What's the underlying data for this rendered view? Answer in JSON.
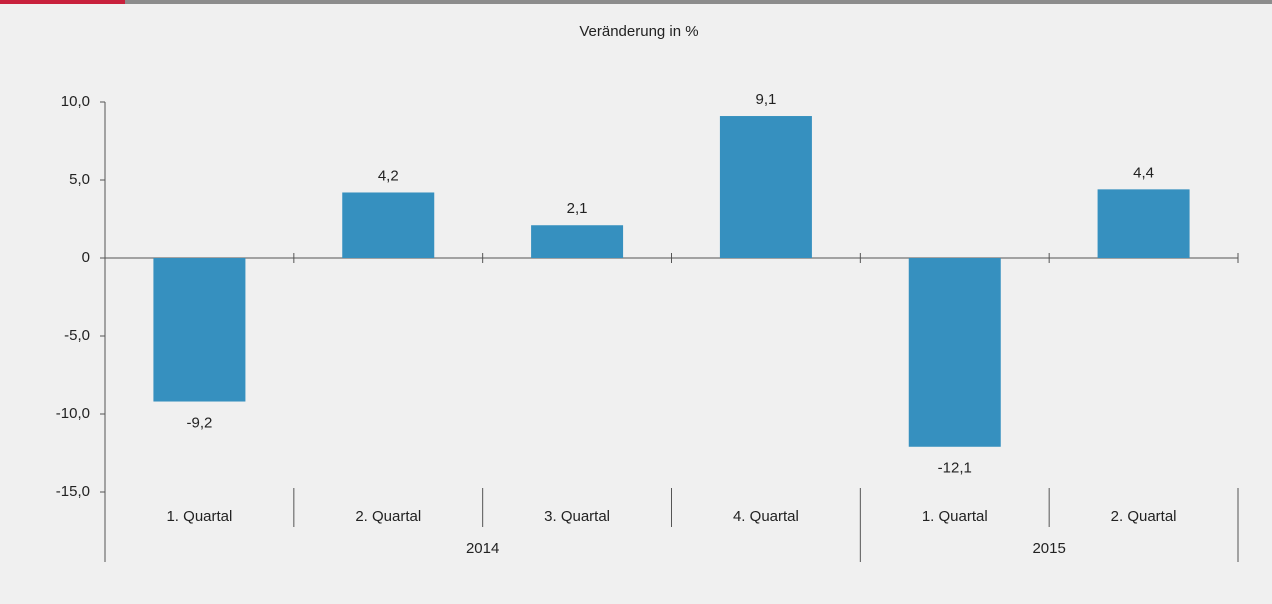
{
  "chart_data": {
    "type": "bar",
    "title": "Veränderung in %",
    "categories": [
      "1. Quartal",
      "2. Quartal",
      "3. Quartal",
      "4. Quartal",
      "1. Quartal",
      "2. Quartal"
    ],
    "groups": [
      {
        "label": "2014",
        "count": 4
      },
      {
        "label": "2015",
        "count": 2
      }
    ],
    "values": [
      -9.2,
      4.2,
      2.1,
      9.1,
      -12.1,
      4.4
    ],
    "value_labels": [
      "-9,2",
      "4,2",
      "2,1",
      "9,1",
      "-12,1",
      "4,4"
    ],
    "color": "#3690bf",
    "ylim": [
      -15,
      10
    ],
    "yticks": [
      {
        "value": 10,
        "label": "10,0"
      },
      {
        "value": 5,
        "label": "5,0"
      },
      0,
      {
        "value": -5,
        "label": "-5,0"
      },
      {
        "value": -10,
        "label": "-10,0"
      },
      {
        "value": -15,
        "label": "-15,0"
      }
    ],
    "grid": false
  }
}
